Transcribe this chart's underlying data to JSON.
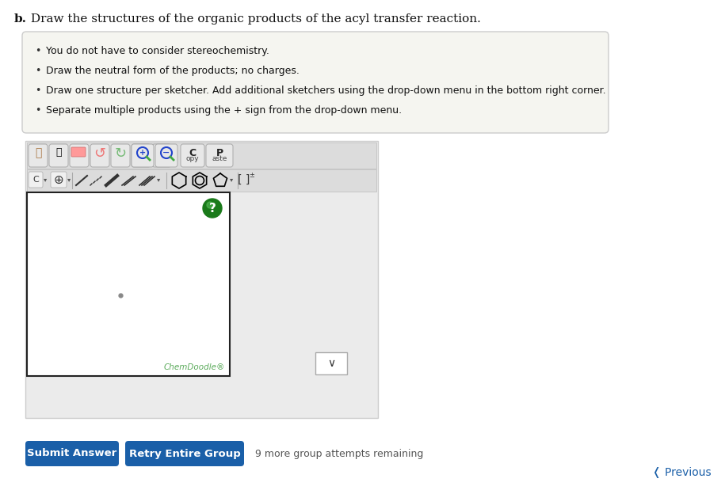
{
  "title_bold": "b.",
  "title_text": " Draw the structures of the organic products of the acyl transfer reaction.",
  "bullet_points": [
    "You do not have to consider stereochemistry.",
    "Draw the neutral form of the products; no charges.",
    "Draw one structure per sketcher. Add additional sketchers using the drop-down menu in the bottom right corner.",
    "Separate multiple products using the + sign from the drop-down menu."
  ],
  "box_bg": "#f5f5f0",
  "box_border": "#cccccc",
  "toolbar_bg": "#dcdcdc",
  "sketcher_bg": "#ffffff",
  "sketcher_border": "#222222",
  "chemdoodle_text": "ChemDoodle®",
  "chemdoodle_color": "#5aaa5a",
  "btn_submit_text": "Submit Answer",
  "btn_retry_text": "Retry Entire Group",
  "btn_color": "#1a5fa8",
  "btn_text_color": "#ffffff",
  "attempts_text": "9 more group attempts remaining",
  "previous_text": "❬ Previous",
  "previous_color": "#1a5fa8",
  "background_color": "#ffffff",
  "question_mark_color": "#2a7a2a",
  "dot_color": "#888888",
  "outer_container_bg": "#eeeeee",
  "outer_container_border": "#cccccc",
  "icon_btn_bg": "#e8e8e8",
  "icon_btn_border": "#bbbbbb"
}
